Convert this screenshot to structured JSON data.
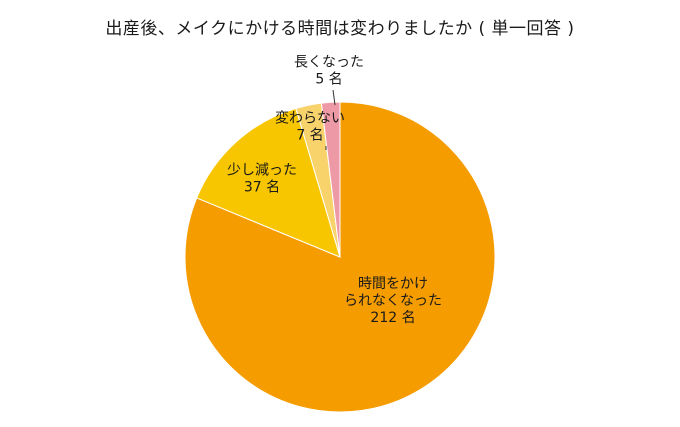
{
  "chart_data": {
    "type": "pie",
    "title": "出産後、メイクにかける時間は変わりましたか ( 単一回答 )",
    "unit": "名",
    "start": "12 o'clock",
    "direction": "clockwise",
    "slices": [
      {
        "label": "時間をかけられなくなった",
        "label_lines": [
          "時間をかけ",
          "られなくなった",
          "212 名"
        ],
        "value": 212,
        "color": "#f59c00"
      },
      {
        "label": "少し減った",
        "label_lines": [
          "少し減った",
          "37 名"
        ],
        "value": 37,
        "color": "#f7c600"
      },
      {
        "label": "変わらない",
        "label_lines": [
          "変わらない",
          "7 名"
        ],
        "value": 7,
        "color": "#f8d36c"
      },
      {
        "label": "長くなった",
        "label_lines": [
          "長くなった",
          "5 名"
        ],
        "value": 5,
        "color": "#ee9aa6"
      }
    ]
  }
}
